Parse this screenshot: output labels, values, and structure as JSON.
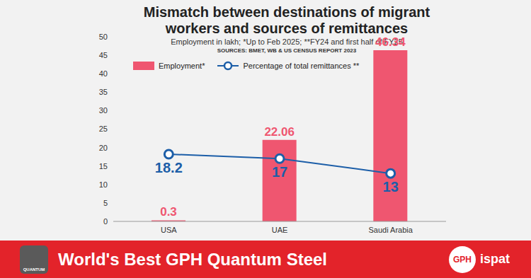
{
  "chart_data": {
    "type": "bar",
    "title": "Mismatch between destinations of migrant workers and sources of remittances",
    "subtitle": "Employment in lakh; *Up to Feb 2025; **FY24 and first half of FY25",
    "source": "SOURCES: BMET, WB & US CENSUS REPORT 2023",
    "categories": [
      "USA",
      "UAE",
      "Saudi Arabia"
    ],
    "series": [
      {
        "name": "Employment*",
        "type": "bar",
        "color": "#ef5670",
        "values": [
          0.3,
          22.06,
          46.34
        ],
        "data_labels": true
      },
      {
        "name": "Percentage of total remittances **",
        "type": "line",
        "color": "#1c5ea8",
        "marker": "circle",
        "values": [
          18.2,
          17,
          13
        ],
        "data_labels": true
      }
    ],
    "ylim": [
      0,
      50
    ],
    "yticks": [
      0,
      5,
      10,
      15,
      20,
      25,
      30,
      35,
      40,
      45,
      50
    ],
    "grid": false,
    "legend": "upper left"
  },
  "banner": {
    "logo": "QUANTUM",
    "text": "World's Best GPH Quantum Steel",
    "brand_mark": "GPH",
    "brand": "ispat"
  }
}
